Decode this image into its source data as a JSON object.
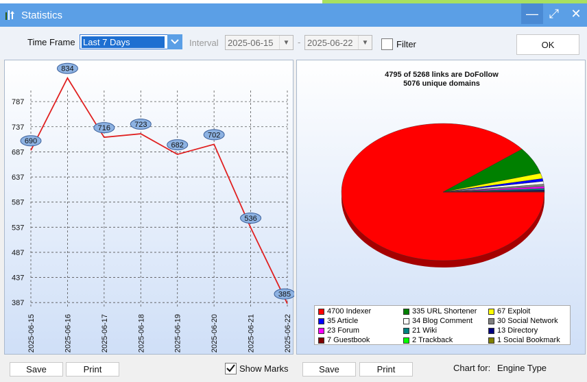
{
  "window": {
    "title": "Statistics",
    "buttons": [
      "—",
      "⤢",
      "✕"
    ]
  },
  "toolbar": {
    "time_frame_label": "Time Frame",
    "time_frame_value": "Last 7 Days",
    "interval_label": "Interval",
    "date_from": "2025-06-15",
    "date_to": "2025-06-22",
    "date_separator": "-",
    "filter_label": "Filter",
    "ok_label": "OK"
  },
  "bottom": {
    "left_save": "Save",
    "left_print": "Print",
    "show_marks_label": "Show Marks",
    "show_marks_checked": true,
    "right_save": "Save",
    "right_print": "Print",
    "chart_for_label": "Chart for:",
    "chart_for_value": "Engine Type"
  },
  "chart_data": [
    {
      "type": "line",
      "x": [
        "2025-06-15",
        "2025-06-16",
        "2025-06-17",
        "2025-06-18",
        "2025-06-19",
        "2025-06-20",
        "2025-06-21",
        "2025-06-22"
      ],
      "series": [
        {
          "values": [
            690,
            834,
            716,
            723,
            682,
            702,
            536,
            385
          ],
          "color": "#e02020"
        }
      ],
      "yticks": [
        387,
        437,
        487,
        537,
        587,
        637,
        687,
        737,
        787
      ],
      "ylim": [
        375,
        850
      ],
      "grid": true,
      "data_labels": true
    },
    {
      "type": "pie",
      "title_lines": [
        "4795 of 5268 links are DoFollow",
        "5076 unique domains"
      ],
      "slices": [
        {
          "label": "4700 Indexer",
          "value": 4700,
          "color": "#ff0000"
        },
        {
          "label": "335 URL Shortener",
          "value": 335,
          "color": "#008000"
        },
        {
          "label": "67 Exploit",
          "value": 67,
          "color": "#ffff00"
        },
        {
          "label": "35 Article",
          "value": 35,
          "color": "#0000ff"
        },
        {
          "label": "34 Blog Comment",
          "value": 34,
          "color": "#ffffff"
        },
        {
          "label": "30 Social Network",
          "value": 30,
          "color": "#808080"
        },
        {
          "label": "23 Forum",
          "value": 23,
          "color": "#ff00ff"
        },
        {
          "label": "21 Wiki",
          "value": 21,
          "color": "#008080"
        },
        {
          "label": "13 Directory",
          "value": 13,
          "color": "#000080"
        },
        {
          "label": "7 Guestbook",
          "value": 7,
          "color": "#800000"
        },
        {
          "label": "2 Trackback",
          "value": 2,
          "color": "#00ff00"
        },
        {
          "label": "1 Social Bookmark",
          "value": 1,
          "color": "#808000"
        }
      ],
      "legend_position": "bottom"
    }
  ]
}
